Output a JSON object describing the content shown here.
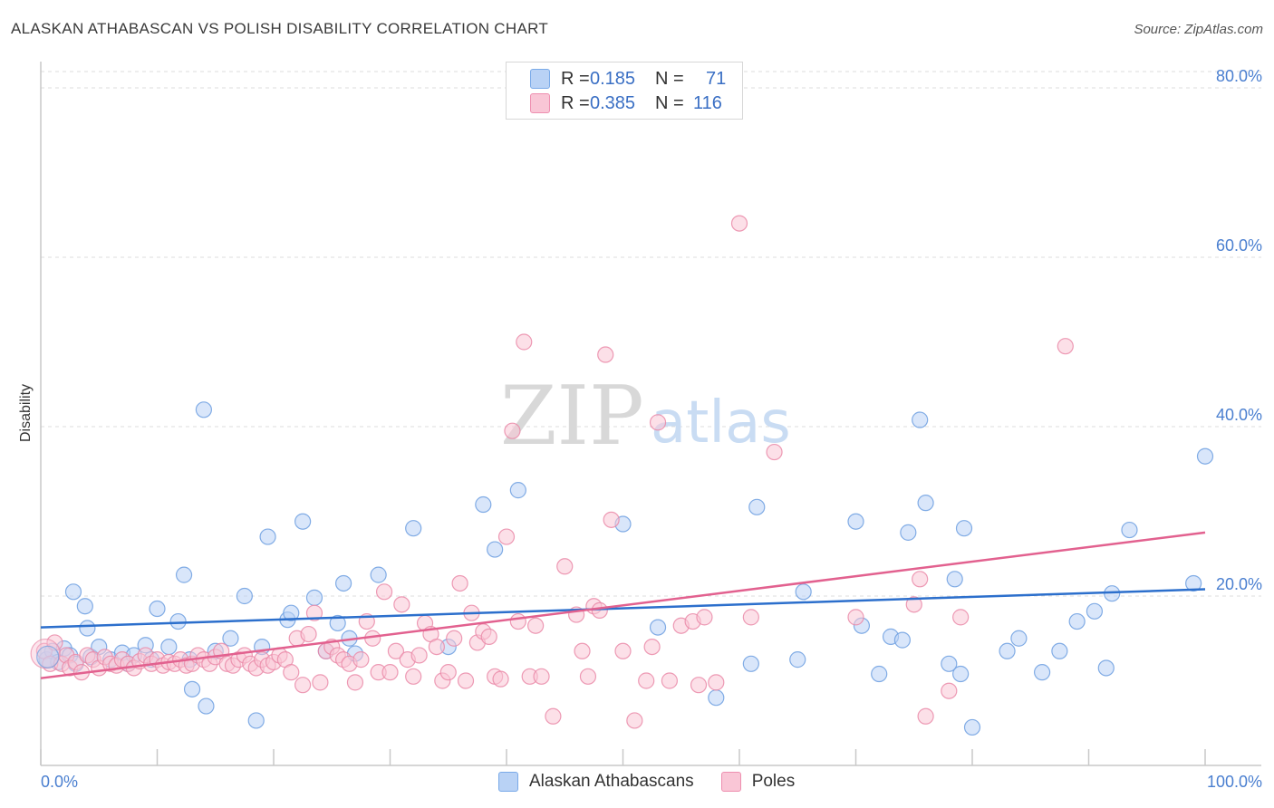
{
  "title": "ALASKAN ATHABASCAN VS POLISH DISABILITY CORRELATION CHART",
  "source": "Source: ZipAtlas.com",
  "legend_top": [
    {
      "r_label": "R =",
      "r_value": "0.185",
      "n_label": "N =",
      "n_value": "71",
      "color": "#7aaae8",
      "fill": "#b9d2f5"
    },
    {
      "r_label": "R =",
      "r_value": "0.385",
      "n_label": "N =",
      "n_value": "116",
      "color": "#ee8fb0",
      "fill": "#f9c6d6"
    }
  ],
  "watermark": {
    "zip": "ZIP",
    "atlas": "atlas"
  },
  "chart_data": {
    "type": "scatter",
    "ylabel": "Disability",
    "xlim": [
      0,
      100
    ],
    "ylim": [
      0,
      80
    ],
    "x_tick_labels": [
      "0.0%",
      "100.0%"
    ],
    "y_ticks": [
      20,
      40,
      60,
      80
    ],
    "y_tick_labels": [
      "20.0%",
      "40.0%",
      "60.0%",
      "80.0%"
    ],
    "grid": true,
    "series": [
      {
        "name": "Alaskan Athabascans",
        "color": "#6d9fe0",
        "fill": "#b9d2f5",
        "line_color": "#2c6fcc",
        "trend": [
          [
            0,
            16.3
          ],
          [
            100,
            20.8
          ]
        ],
        "points": [
          [
            0.5,
            12.5
          ],
          [
            1,
            13.5
          ],
          [
            1.5,
            12.2
          ],
          [
            2,
            13.8
          ],
          [
            2.5,
            13.0
          ],
          [
            3,
            12.0
          ],
          [
            2.8,
            20.5
          ],
          [
            3.8,
            18.8
          ],
          [
            4,
            16.2
          ],
          [
            4.3,
            12.8
          ],
          [
            5,
            14.0
          ],
          [
            6,
            12.5
          ],
          [
            7,
            13.3
          ],
          [
            7.5,
            12.0
          ],
          [
            8,
            13.0
          ],
          [
            9,
            14.2
          ],
          [
            9.5,
            12.5
          ],
          [
            10,
            18.5
          ],
          [
            11,
            14.0
          ],
          [
            11.8,
            17.0
          ],
          [
            12.3,
            22.5
          ],
          [
            13,
            9.0
          ],
          [
            12.8,
            12.5
          ],
          [
            14,
            42.0
          ],
          [
            14.2,
            7.0
          ],
          [
            15,
            13.5
          ],
          [
            16.3,
            15.0
          ],
          [
            17.5,
            20.0
          ],
          [
            18.5,
            5.3
          ],
          [
            19,
            14.0
          ],
          [
            19.5,
            27.0
          ],
          [
            21.2,
            17.2
          ],
          [
            21.5,
            18.0
          ],
          [
            22.5,
            28.8
          ],
          [
            23.5,
            19.8
          ],
          [
            24.5,
            13.5
          ],
          [
            25.5,
            16.8
          ],
          [
            26,
            21.5
          ],
          [
            26.5,
            15.0
          ],
          [
            27,
            13.2
          ],
          [
            29,
            22.5
          ],
          [
            32,
            28.0
          ],
          [
            35,
            14.0
          ],
          [
            38,
            30.8
          ],
          [
            39,
            25.5
          ],
          [
            41,
            32.5
          ],
          [
            50,
            28.5
          ],
          [
            53,
            16.3
          ],
          [
            58,
            8.0
          ],
          [
            61,
            12.0
          ],
          [
            61.5,
            30.5
          ],
          [
            65,
            12.5
          ],
          [
            65.5,
            20.5
          ],
          [
            70,
            28.8
          ],
          [
            70.5,
            16.5
          ],
          [
            72,
            10.8
          ],
          [
            73,
            15.2
          ],
          [
            74,
            14.8
          ],
          [
            74.5,
            27.5
          ],
          [
            75.5,
            40.8
          ],
          [
            76,
            31.0
          ],
          [
            78.5,
            22.0
          ],
          [
            78,
            12.0
          ],
          [
            79,
            10.8
          ],
          [
            79.3,
            28.0
          ],
          [
            80,
            4.5
          ],
          [
            83,
            13.5
          ],
          [
            84,
            15.0
          ],
          [
            86,
            11.0
          ],
          [
            87.5,
            13.5
          ],
          [
            89,
            17.0
          ],
          [
            90.5,
            18.2
          ],
          [
            91.5,
            11.5
          ],
          [
            92,
            20.3
          ],
          [
            93.5,
            27.8
          ],
          [
            99,
            21.5
          ],
          [
            100,
            36.5
          ]
        ]
      },
      {
        "name": "Poles",
        "color": "#ea8aa8",
        "fill": "#f9c6d6",
        "line_color": "#e2618f",
        "trend": [
          [
            0,
            10.3
          ],
          [
            100,
            27.5
          ]
        ],
        "points": [
          [
            0.3,
            13.5
          ],
          [
            0.8,
            12.0
          ],
          [
            1.2,
            14.5
          ],
          [
            1.8,
            12.0
          ],
          [
            2.2,
            13.0
          ],
          [
            2.5,
            11.5
          ],
          [
            3,
            12.2
          ],
          [
            3.5,
            11.0
          ],
          [
            4,
            13.0
          ],
          [
            4.5,
            12.5
          ],
          [
            5,
            11.5
          ],
          [
            5.5,
            12.8
          ],
          [
            6,
            12.0
          ],
          [
            6.5,
            11.8
          ],
          [
            7,
            12.5
          ],
          [
            7.5,
            12.0
          ],
          [
            8,
            11.5
          ],
          [
            8.5,
            12.3
          ],
          [
            9,
            13.0
          ],
          [
            9.5,
            12.0
          ],
          [
            10,
            12.5
          ],
          [
            10.5,
            11.8
          ],
          [
            11,
            12.2
          ],
          [
            11.5,
            12.0
          ],
          [
            12,
            12.5
          ],
          [
            12.5,
            11.8
          ],
          [
            13,
            12.0
          ],
          [
            13.5,
            13.0
          ],
          [
            14,
            12.5
          ],
          [
            14.5,
            12.0
          ],
          [
            15,
            12.8
          ],
          [
            15.5,
            13.5
          ],
          [
            16,
            12.0
          ],
          [
            16.5,
            11.8
          ],
          [
            17,
            12.5
          ],
          [
            17.5,
            13.0
          ],
          [
            18,
            12.0
          ],
          [
            18.5,
            11.5
          ],
          [
            19,
            12.5
          ],
          [
            19.5,
            11.8
          ],
          [
            20,
            12.2
          ],
          [
            20.5,
            13.0
          ],
          [
            21,
            12.5
          ],
          [
            21.5,
            11.0
          ],
          [
            22,
            15.0
          ],
          [
            22.5,
            9.5
          ],
          [
            23,
            15.5
          ],
          [
            23.5,
            18.0
          ],
          [
            24,
            9.8
          ],
          [
            24.5,
            13.5
          ],
          [
            25,
            14.0
          ],
          [
            25.5,
            13.0
          ],
          [
            26,
            12.5
          ],
          [
            26.5,
            12.0
          ],
          [
            27,
            9.8
          ],
          [
            27.5,
            12.5
          ],
          [
            28,
            17.0
          ],
          [
            28.5,
            15.0
          ],
          [
            29,
            11.0
          ],
          [
            29.5,
            20.5
          ],
          [
            30,
            11.0
          ],
          [
            30.5,
            13.5
          ],
          [
            31,
            19.0
          ],
          [
            31.5,
            12.5
          ],
          [
            32,
            10.5
          ],
          [
            32.5,
            13.0
          ],
          [
            33,
            16.8
          ],
          [
            33.5,
            15.5
          ],
          [
            34,
            14.0
          ],
          [
            34.5,
            10.0
          ],
          [
            35,
            11.0
          ],
          [
            35.5,
            15.0
          ],
          [
            36,
            21.5
          ],
          [
            36.5,
            10.0
          ],
          [
            37,
            18.0
          ],
          [
            37.5,
            14.5
          ],
          [
            38,
            15.8
          ],
          [
            38.5,
            15.2
          ],
          [
            39,
            10.5
          ],
          [
            39.5,
            10.2
          ],
          [
            40,
            27.0
          ],
          [
            40.5,
            39.5
          ],
          [
            41,
            17.0
          ],
          [
            41.5,
            50.0
          ],
          [
            42,
            10.5
          ],
          [
            42.5,
            16.5
          ],
          [
            43,
            10.5
          ],
          [
            44,
            5.8
          ],
          [
            45,
            23.5
          ],
          [
            46,
            17.8
          ],
          [
            46.5,
            13.5
          ],
          [
            47,
            10.5
          ],
          [
            47.5,
            18.8
          ],
          [
            48,
            18.3
          ],
          [
            48.5,
            48.5
          ],
          [
            49,
            29.0
          ],
          [
            50,
            13.5
          ],
          [
            51,
            5.3
          ],
          [
            52,
            10.0
          ],
          [
            52.5,
            14.0
          ],
          [
            53,
            40.5
          ],
          [
            54,
            10.0
          ],
          [
            55,
            16.5
          ],
          [
            56,
            17.0
          ],
          [
            56.5,
            9.5
          ],
          [
            57,
            17.5
          ],
          [
            58,
            9.8
          ],
          [
            60,
            64.0
          ],
          [
            61,
            17.5
          ],
          [
            63,
            37.0
          ],
          [
            70,
            17.5
          ],
          [
            75,
            19.0
          ],
          [
            75.5,
            22.0
          ],
          [
            76,
            5.8
          ],
          [
            78,
            8.8
          ],
          [
            79,
            17.5
          ],
          [
            88,
            49.5
          ]
        ]
      }
    ]
  }
}
